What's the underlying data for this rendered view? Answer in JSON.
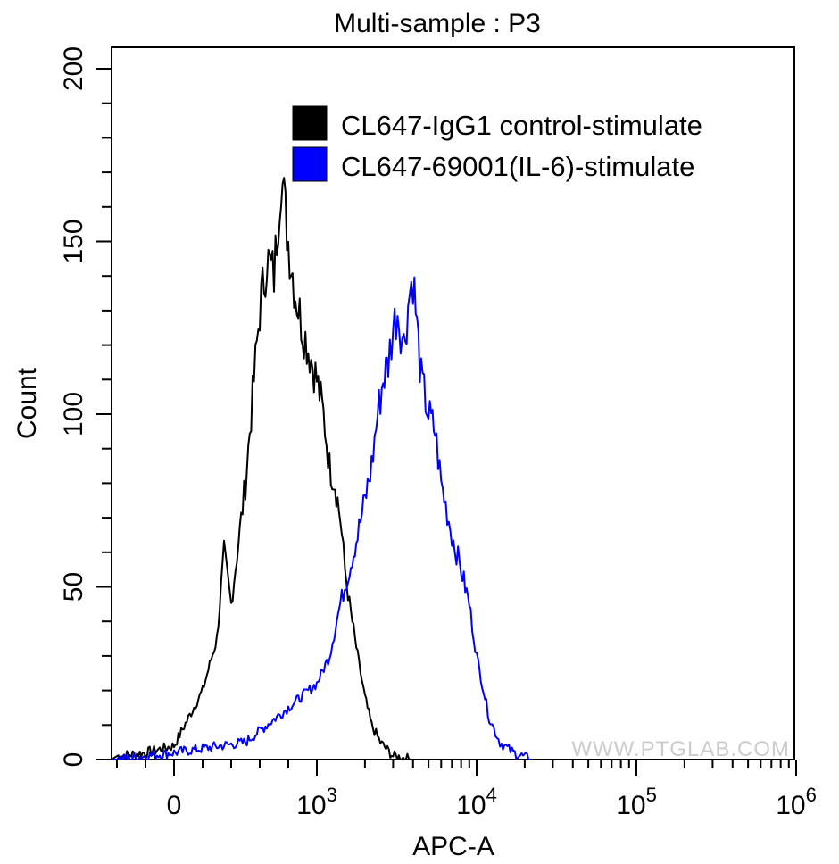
{
  "chart_data": {
    "type": "line",
    "title": "Multi-sample : P3",
    "xlabel": "APC-A",
    "ylabel": "Count",
    "ylim": [
      0,
      200
    ],
    "yticks": [
      0,
      50,
      100,
      150,
      200
    ],
    "x_scale": "biexponential",
    "xticks": [
      {
        "label": "0",
        "sup": ""
      },
      {
        "label": "10",
        "sup": "3"
      },
      {
        "label": "10",
        "sup": "4"
      },
      {
        "label": "10",
        "sup": "5"
      },
      {
        "label": "10",
        "sup": "6"
      }
    ],
    "legend": "top-right",
    "watermark": "WWW.PTGLAB.COM",
    "series": [
      {
        "name": "CL647-IgG1 control-stimulate",
        "color": "#000000",
        "x": [
          -400,
          -200,
          0,
          100,
          200,
          300,
          350,
          400,
          500,
          550,
          600,
          650,
          700,
          750,
          800,
          850,
          900,
          1000,
          1100,
          1200,
          1300,
          1400,
          1500,
          1600,
          1800,
          2000,
          2200,
          2500,
          3000,
          4000
        ],
        "y": [
          1,
          2,
          4,
          12,
          20,
          35,
          60,
          45,
          80,
          105,
          130,
          145,
          140,
          170,
          150,
          135,
          125,
          110,
          100,
          85,
          80,
          70,
          55,
          45,
          30,
          18,
          10,
          5,
          1,
          0
        ]
      },
      {
        "name": "CL647-69001(IL-6)-stimulate",
        "color": "#0000ff",
        "x": [
          -400,
          0,
          500,
          800,
          1000,
          1200,
          1400,
          1600,
          1800,
          2000,
          2200,
          2400,
          2600,
          2800,
          3000,
          3200,
          3500,
          3800,
          4000,
          4500,
          5000,
          5500,
          6000,
          7000,
          8000,
          9000,
          10000,
          12000,
          14000,
          17000,
          22000
        ],
        "y": [
          0,
          2,
          5,
          15,
          22,
          30,
          45,
          55,
          65,
          75,
          85,
          100,
          110,
          115,
          125,
          130,
          120,
          135,
          140,
          110,
          100,
          95,
          80,
          65,
          55,
          45,
          30,
          12,
          5,
          2,
          0
        ]
      }
    ]
  }
}
